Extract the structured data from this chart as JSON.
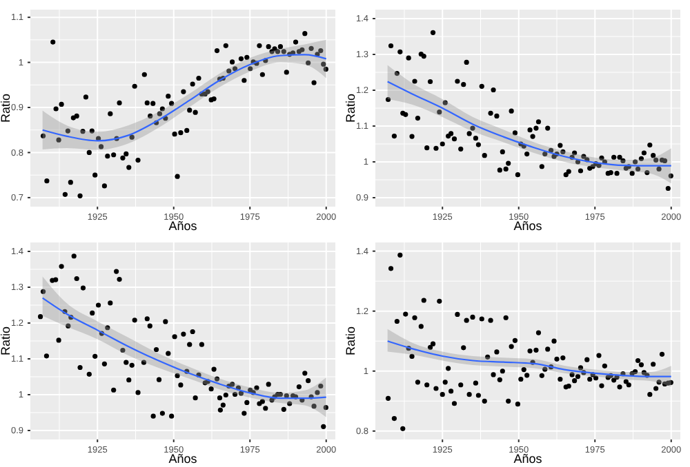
{
  "chart_data": [
    {
      "type": "scatter",
      "xlabel": "Años",
      "ylabel": "Ratio",
      "xlim": [
        1903,
        2003
      ],
      "ylim": [
        0.68,
        1.117
      ],
      "xticks": [
        1925,
        1950,
        1975,
        2000
      ],
      "yticks": [
        0.7,
        0.8,
        0.9,
        1.0,
        1.1
      ],
      "grid": true,
      "series": [
        {
          "marker": "circle",
          "color": "#000000",
          "x": [
            1907.2,
            1908.4,
            1910.4,
            1911.4,
            1912.3,
            1913.2,
            1914.4,
            1915.3,
            1916.2,
            1917.1,
            1918.2,
            1919.3,
            1920.2,
            1921.2,
            1922.3,
            1923.2,
            1924.2,
            1925.3,
            1926.2,
            1927.3,
            1928.3,
            1929.2,
            1930.3,
            1931.3,
            1932.2,
            1933.3,
            1934.4,
            1935.3,
            1936.3,
            1937.2,
            1938.3,
            1940.4,
            1941.3,
            1942.3,
            1943.2,
            1944.3,
            1945.4,
            1946.3,
            1947.3,
            1948.2,
            1949.3,
            1950.3,
            1951.2,
            1952.3,
            1953.2,
            1954.3,
            1955.2,
            1956.2,
            1957.1,
            1958.2,
            1959.2,
            1960.3,
            1961.2,
            1962.3,
            1963.2,
            1964.2,
            1965.1,
            1966.2,
            1967.1,
            1968.1,
            1969.2,
            1970.1,
            1972.1,
            1973.1,
            1974.0,
            1975.1,
            1976.1,
            1977.2,
            1978.1,
            1979.1,
            1980.1,
            1981.1,
            1982.2,
            1983.1,
            1984.1,
            1985.0,
            1986.1,
            1987.0,
            1988.0,
            1989.1,
            1990.0,
            1991.1,
            1992.1,
            1993.0,
            1994.1,
            1995.1,
            1996.0,
            1997.1,
            1998.2,
            1999.1,
            1999.9
          ],
          "values": [
            0.837,
            0.737,
            1.045,
            0.897,
            0.828,
            0.907,
            0.707,
            0.848,
            0.734,
            0.877,
            0.881,
            0.704,
            0.847,
            0.923,
            0.8,
            0.848,
            0.75,
            0.831,
            0.813,
            0.726,
            0.792,
            0.886,
            0.795,
            0.831,
            0.91,
            0.788,
            0.797,
            0.767,
            0.834,
            0.947,
            0.783,
            0.973,
            0.91,
            0.881,
            0.909,
            0.866,
            0.886,
            0.897,
            0.876,
            0.925,
            0.909,
            0.841,
            0.747,
            0.844,
            0.935,
            0.849,
            0.894,
            0.952,
            0.889,
            0.965,
            0.93,
            0.93,
            0.935,
            0.917,
            0.919,
            1.026,
            0.963,
            0.965,
            1.037,
            0.981,
            1.001,
            0.986,
            1.008,
            0.96,
            1.011,
            0.986,
            1.001,
            0.998,
            1.037,
            0.973,
            1.004,
            1.035,
            1.024,
            1.03,
            1.024,
            1.035,
            1.024,
            0.978,
            1.018,
            1.021,
            1.045,
            1.024,
            1.028,
            1.064,
            0.999,
            1.031,
            0.955,
            1.018,
            1.026,
            0.996,
            0.985
          ]
        },
        {
          "type": "line",
          "color": "#3366ff",
          "x": [
            1907,
            1915,
            1925,
            1935,
            1945,
            1955,
            1965,
            1975,
            1985,
            1993,
            2000
          ],
          "values": [
            0.85,
            0.836,
            0.826,
            0.838,
            0.872,
            0.915,
            0.96,
            0.995,
            1.015,
            1.017,
            1.008
          ],
          "lower": [
            0.807,
            0.81,
            0.806,
            0.82,
            0.855,
            0.9,
            0.945,
            0.98,
            1.0,
            0.995,
            0.965
          ],
          "upper": [
            0.893,
            0.86,
            0.846,
            0.86,
            0.89,
            0.93,
            0.975,
            1.01,
            1.03,
            1.04,
            1.05
          ]
        }
      ]
    },
    {
      "type": "scatter",
      "xlabel": "Años",
      "ylabel": "Ratio",
      "xlim": [
        1903,
        2003
      ],
      "ylim": [
        0.875,
        1.425
      ],
      "xticks": [
        1925,
        1950,
        1975,
        2000
      ],
      "yticks": [
        0.9,
        1.0,
        1.1,
        1.2,
        1.3,
        1.4
      ],
      "grid": true,
      "series": [
        {
          "marker": "circle",
          "color": "#000000",
          "x": [
            1907.2,
            1908.1,
            1909.2,
            1910.1,
            1911.1,
            1912.0,
            1912.9,
            1913.9,
            1915.0,
            1915.9,
            1916.9,
            1918.0,
            1918.9,
            1919.9,
            1921.0,
            1921.9,
            1922.9,
            1924.0,
            1925.0,
            1925.9,
            1926.9,
            1927.8,
            1928.9,
            1929.9,
            1931.0,
            1931.9,
            1932.9,
            1933.8,
            1934.9,
            1935.9,
            1936.8,
            1937.9,
            1938.8,
            1940.8,
            1941.7,
            1942.8,
            1943.8,
            1944.7,
            1945.8,
            1946.6,
            1947.6,
            1948.8,
            1949.7,
            1950.7,
            1951.7,
            1952.7,
            1953.7,
            1954.6,
            1955.7,
            1956.5,
            1957.6,
            1958.6,
            1959.5,
            1960.6,
            1961.6,
            1962.5,
            1963.6,
            1964.5,
            1965.5,
            1966.4,
            1967.5,
            1968.3,
            1969.4,
            1970.3,
            1971.3,
            1972.4,
            1973.3,
            1974.3,
            1975.3,
            1976.3,
            1977.2,
            1978.2,
            1979.3,
            1980.2,
            1981.2,
            1982.2,
            1983.1,
            1984.2,
            1985.2,
            1986.1,
            1987.2,
            1988.2,
            1989.1,
            1990.2,
            1991.1,
            1992.1,
            1993.0,
            1994.1,
            1995.0,
            1996.0,
            1997.0,
            1997.9,
            1999.0,
            1999.9
          ],
          "values": [
            1.174,
            1.324,
            1.072,
            1.247,
            1.307,
            1.136,
            1.132,
            1.29,
            1.071,
            1.225,
            1.122,
            1.301,
            1.295,
            1.039,
            1.224,
            1.361,
            1.038,
            1.139,
            1.05,
            1.165,
            1.072,
            1.079,
            1.064,
            1.225,
            1.036,
            1.216,
            1.278,
            1.079,
            1.094,
            1.066,
            1.048,
            1.211,
            1.018,
            1.136,
            1.201,
            1.128,
            0.977,
            1.028,
            0.98,
            0.996,
            1.142,
            1.081,
            0.964,
            1.05,
            1.044,
            1.022,
            1.089,
            1.071,
            1.094,
            1.112,
            0.987,
            1.022,
            1.094,
            1.032,
            1.015,
            1.022,
            1.046,
            1.028,
            0.964,
            0.973,
            1.013,
            1.025,
            1.0,
            0.975,
            1.015,
            1.006,
            0.982,
            0.987,
            0.995,
            0.99,
            1.011,
            1.0,
            0.968,
            0.97,
            1.013,
            0.968,
            1.013,
            1.003,
            0.982,
            0.987,
            0.968,
            1.0,
            0.98,
            1.009,
            1.025,
            0.97,
            1.047,
            1.018,
            1.005,
            0.98,
            1.005,
            1.003,
            0.926,
            0.961
          ]
        },
        {
          "type": "line",
          "color": "#3366ff",
          "x": [
            1907,
            1915,
            1925,
            1935,
            1945,
            1955,
            1965,
            1975,
            1985,
            1993,
            2000
          ],
          "values": [
            1.224,
            1.19,
            1.15,
            1.105,
            1.07,
            1.04,
            1.015,
            0.998,
            0.99,
            0.989,
            0.989
          ],
          "lower": [
            1.175,
            1.16,
            1.125,
            1.085,
            1.055,
            1.025,
            1.0,
            0.985,
            0.975,
            0.968,
            0.94
          ],
          "upper": [
            1.27,
            1.22,
            1.175,
            1.125,
            1.09,
            1.055,
            1.03,
            1.012,
            1.005,
            1.01,
            1.038
          ]
        }
      ]
    },
    {
      "type": "scatter",
      "xlabel": "Años",
      "ylabel": "Ratio",
      "xlim": [
        1903,
        2003
      ],
      "ylim": [
        0.875,
        1.425
      ],
      "xticks": [
        1925,
        1950,
        1975,
        2000
      ],
      "yticks": [
        0.9,
        1.0,
        1.1,
        1.2,
        1.3,
        1.4
      ],
      "grid": true,
      "series": [
        {
          "marker": "circle",
          "color": "#000000",
          "x": [
            1906.3,
            1907.2,
            1908.3,
            1910.2,
            1911.3,
            1912.3,
            1913.2,
            1914.3,
            1915.4,
            1916.3,
            1917.3,
            1918.2,
            1919.3,
            1920.3,
            1922.3,
            1923.3,
            1924.2,
            1925.3,
            1926.4,
            1927.3,
            1928.3,
            1929.2,
            1930.3,
            1931.2,
            1932.2,
            1933.3,
            1934.4,
            1935.3,
            1936.3,
            1937.2,
            1938.3,
            1940.2,
            1941.3,
            1942.2,
            1943.3,
            1944.3,
            1945.2,
            1946.3,
            1947.3,
            1948.2,
            1949.3,
            1950.3,
            1951.2,
            1952.3,
            1953.2,
            1954.3,
            1955.2,
            1956.2,
            1957.1,
            1958.2,
            1959.2,
            1960.3,
            1961.2,
            1962.3,
            1963.2,
            1964.2,
            1965.1,
            1965.3,
            1966.2,
            1967.1,
            1968.1,
            1969.2,
            1970.1,
            1971.2,
            1972.1,
            1973.1,
            1974.0,
            1975.1,
            1976.1,
            1977.2,
            1978.1,
            1979.1,
            1980.1,
            1981.1,
            1982.2,
            1983.1,
            1984.1,
            1985.0,
            1986.1,
            1987.0,
            1988.0,
            1989.1,
            1990.0,
            1991.1,
            1992.1,
            1993.0,
            1994.1,
            1995.1,
            1996.0,
            1997.1,
            1998.2,
            1999.1,
            1999.9
          ],
          "values": [
            1.218,
            1.288,
            1.108,
            1.319,
            1.321,
            1.152,
            1.358,
            1.232,
            1.192,
            1.216,
            1.387,
            1.324,
            1.076,
            1.298,
            1.057,
            1.228,
            1.107,
            1.25,
            1.171,
            1.086,
            1.187,
            1.256,
            1.013,
            1.344,
            1.322,
            1.124,
            1.09,
            1.041,
            1.082,
            1.208,
            1.006,
            1.09,
            1.212,
            1.192,
            0.94,
            1.126,
            1.042,
            0.948,
            1.204,
            1.115,
            0.94,
            1.162,
            1.053,
            1.027,
            1.169,
            1.065,
            1.14,
            1.176,
            0.991,
            1.055,
            1.14,
            1.033,
            1.037,
            1.016,
            1.071,
            1.044,
            0.991,
            0.957,
            0.971,
            0.999,
            1.024,
            1.029,
            1.001,
            1.019,
            1.004,
            0.948,
            0.978,
            1.013,
            1.006,
            1.019,
            0.975,
            0.981,
            0.962,
            1.029,
            0.985,
            0.994,
            1.001,
            1.001,
            0.959,
            0.997,
            0.975,
            0.997,
            0.994,
            1.022,
            0.985,
            1.06,
            1.039,
            0.994,
            0.968,
            1.006,
            1.024,
            0.911,
            0.964
          ]
        },
        {
          "type": "line",
          "color": "#3366ff",
          "x": [
            1907,
            1915,
            1925,
            1935,
            1945,
            1955,
            1965,
            1975,
            1985,
            1993,
            2000
          ],
          "values": [
            1.27,
            1.225,
            1.18,
            1.135,
            1.095,
            1.06,
            1.03,
            1.005,
            0.99,
            0.99,
            0.993
          ],
          "lower": [
            1.22,
            1.19,
            1.155,
            1.11,
            1.075,
            1.045,
            1.015,
            0.992,
            0.977,
            0.97,
            0.937
          ],
          "upper": [
            1.33,
            1.255,
            1.205,
            1.16,
            1.115,
            1.078,
            1.045,
            1.02,
            1.005,
            1.012,
            1.048
          ]
        }
      ]
    },
    {
      "type": "scatter",
      "xlabel": "Años",
      "ylabel": "Ratio",
      "xlim": [
        1903,
        2003
      ],
      "ylim": [
        0.772,
        1.429
      ],
      "xticks": [
        1925,
        1950,
        1975,
        2000
      ],
      "yticks": [
        0.8,
        1.0,
        1.2,
        1.4
      ],
      "grid": true,
      "series": [
        {
          "marker": "circle",
          "color": "#000000",
          "x": [
            1907.2,
            1908.1,
            1909.2,
            1910.1,
            1911.1,
            1912.0,
            1912.9,
            1913.9,
            1915.0,
            1915.9,
            1916.9,
            1918.0,
            1918.9,
            1919.9,
            1921.0,
            1921.9,
            1922.9,
            1924.0,
            1925.0,
            1925.9,
            1926.9,
            1927.8,
            1928.9,
            1929.9,
            1931.0,
            1931.9,
            1932.9,
            1933.8,
            1934.9,
            1935.9,
            1936.8,
            1937.9,
            1938.8,
            1939.8,
            1940.8,
            1941.7,
            1942.8,
            1943.8,
            1944.7,
            1945.8,
            1946.6,
            1947.6,
            1948.8,
            1949.7,
            1950.7,
            1951.7,
            1952.7,
            1953.7,
            1954.6,
            1955.7,
            1956.5,
            1957.6,
            1958.6,
            1959.5,
            1960.6,
            1961.6,
            1962.5,
            1963.6,
            1964.5,
            1965.5,
            1966.4,
            1967.5,
            1968.3,
            1969.4,
            1970.3,
            1971.3,
            1972.4,
            1973.3,
            1974.3,
            1975.3,
            1976.3,
            1977.2,
            1978.2,
            1979.3,
            1980.2,
            1981.2,
            1982.2,
            1983.1,
            1984.2,
            1985.2,
            1986.1,
            1987.2,
            1988.2,
            1989.1,
            1990.2,
            1991.1,
            1992.1,
            1993.0,
            1994.1,
            1995.0,
            1996.0,
            1997.0,
            1997.9,
            1999.0,
            1999.9
          ],
          "values": [
            0.909,
            1.342,
            0.842,
            1.166,
            1.387,
            0.808,
            1.19,
            1.076,
            1.049,
            1.178,
            0.963,
            1.149,
            1.236,
            0.954,
            1.079,
            1.091,
            0.942,
            1.233,
            0.922,
            0.963,
            1.009,
            0.933,
            0.892,
            1.189,
            0.954,
            1.078,
            1.169,
            0.922,
            1.18,
            0.96,
            0.919,
            1.174,
            0.9,
            1.047,
            1.169,
            0.988,
            1.064,
            0.971,
            1.0,
            1.178,
            0.9,
            1.082,
            1.102,
            0.89,
            0.973,
            1.005,
            0.986,
            1.067,
            1.029,
            1.07,
            1.128,
            0.985,
            1.006,
            1.073,
            1.014,
            1.1,
            1.04,
            0.973,
            1.044,
            0.947,
            0.95,
            0.988,
            0.968,
            0.982,
            1.011,
            0.995,
            1.038,
            0.973,
            0.988,
            0.977,
            1.052,
            0.951,
            1.017,
            0.979,
            0.985,
            0.97,
            0.98,
            0.947,
            0.991,
            0.965,
            0.954,
            0.992,
            0.998,
            1.035,
            1.021,
            0.995,
            0.986,
            0.922,
            1.023,
            0.942,
            0.963,
            1.056,
            0.957,
            0.96,
            0.962
          ]
        },
        {
          "type": "line",
          "color": "#3366ff",
          "x": [
            1907,
            1915,
            1925,
            1935,
            1945,
            1955,
            1965,
            1975,
            1985,
            1993,
            2000
          ],
          "values": [
            1.1,
            1.075,
            1.05,
            1.035,
            1.03,
            1.025,
            1.005,
            0.993,
            0.985,
            0.982,
            0.982
          ],
          "lower": [
            1.065,
            1.055,
            1.035,
            1.02,
            1.015,
            1.01,
            0.993,
            0.982,
            0.972,
            0.967,
            0.948
          ],
          "upper": [
            1.14,
            1.095,
            1.065,
            1.05,
            1.045,
            1.04,
            1.018,
            1.005,
            0.997,
            0.997,
            1.017
          ]
        }
      ]
    }
  ]
}
